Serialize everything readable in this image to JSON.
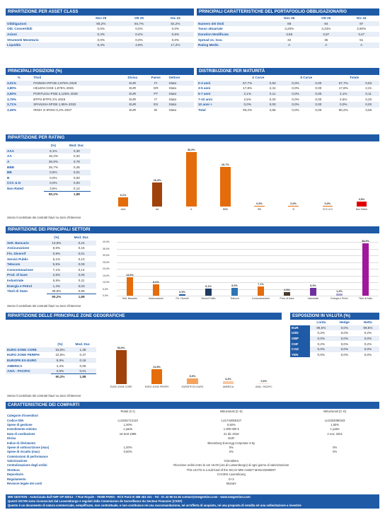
{
  "asset_class": {
    "title": "RIPARTIZIONE PER ASSET CLASS",
    "cols": [
      "Nov 25",
      "Ott 25",
      "Dic 24"
    ],
    "rows": [
      [
        "Obbligazioni",
        "90,2%",
        "94,7%",
        "82,2%"
      ],
      [
        "Obl. Convertibili",
        "0,0%",
        "0,0%",
        "0,0%"
      ],
      [
        "Azioni",
        "0,4%",
        "0,4%",
        "0,6%"
      ],
      [
        "Strumenti Monetario",
        "0,0%",
        "0,0%",
        "0,0%"
      ],
      [
        "Liquidità",
        "9,4%",
        "4,9%",
        "17,2%"
      ]
    ]
  },
  "bond_chars": {
    "title": "PRINCIPALI CARATTERISTICHE DEL PORTAFOGLIO OBBLIGAZIONARIO",
    "cols": [
      "Nov 25",
      "Ott 25",
      "Dic 24"
    ],
    "rows": [
      [
        "Numero dei titoli",
        "88",
        "94",
        "97"
      ],
      [
        "Tasso attuariale",
        "3,20%",
        "3,23%",
        "3,60%"
      ],
      [
        "Duration Modificata",
        "3,55",
        "3,67",
        "3,47"
      ],
      [
        "Spread vs. Gov.",
        "32",
        "35",
        "51"
      ],
      [
        "Rating Medio",
        "A",
        "A",
        "A"
      ]
    ]
  },
  "positions": {
    "title": "PRINCIPALI POSIZIONI (%)",
    "cols": [
      "%",
      "Titoli",
      "Divisa",
      "Paese",
      "Settore"
    ],
    "rows": [
      [
        "3,01%",
        "FINNISH-RFGB 2,875% 2029",
        "EUR",
        "FI",
        "Stato"
      ],
      [
        "3,80%",
        "HELENI-GGB 1,875% 2026",
        "EUR",
        "GR",
        "Stato"
      ],
      [
        "3,60%",
        "PORTUGU-PGB 2,125% 2028",
        "EUR",
        "PT",
        "Stato"
      ],
      [
        "3,79%",
        "BTPS-BTPS 2% 2028",
        "EUR",
        "IT",
        "Stato"
      ],
      [
        "3,71%",
        "SPANISH-SPGB 1,95% 2030",
        "EUR",
        "ES",
        "Stato"
      ],
      [
        "3,49%",
        "IRISH G-IRISH 0,2% 2027",
        "EUR",
        "IE",
        "Stato"
      ]
    ]
  },
  "maturity": {
    "title": "DISTRIBUZIONE PER MATURITÀ",
    "groups": [
      "€ Curve",
      "$ Curve",
      "Totale"
    ],
    "rows": [
      [
        "0-3 anni",
        "67,7%",
        "0,93",
        "0,0%",
        "0,00",
        "67,7%",
        "0,93"
      ],
      [
        "3-5 anni",
        "17,8%",
        "2,31",
        "0,0%",
        "0,00",
        "17,8%",
        "2,31"
      ],
      [
        "5-7 anni",
        "2,1%",
        "0,11",
        "0,0%",
        "0,00",
        "2,1%",
        "0,11"
      ],
      [
        "7-10 anni",
        "2,5%",
        "0,20",
        "0,0%",
        "0,00",
        "2,5%",
        "0,20"
      ],
      [
        "10 anni +",
        "0,0%",
        "0,00",
        "0,0%",
        "0,00",
        "0,0%",
        "0,00"
      ],
      [
        "Total",
        "90,2%",
        "3,55",
        "0,0%",
        "0,00",
        "90,2%",
        "3,55"
      ]
    ]
  },
  "rating": {
    "title": "RIPARTIZIONE PER RATING",
    "cols": [
      "(%)",
      "Mod. Dur."
    ],
    "rows": [
      [
        "AAA",
        "6,1%",
        "0,30"
      ],
      [
        "AA",
        "16,4%",
        "0,32"
      ],
      [
        "A",
        "36,9%",
        "0,78"
      ],
      [
        "BBB",
        "26,7%",
        "0,45"
      ],
      [
        "BB",
        "0,5%",
        "0,01"
      ],
      [
        "B",
        "0,0%",
        "0,00"
      ],
      [
        "CCC & D",
        "0,0%",
        "0,00"
      ],
      [
        "Non Rated",
        "3,5%",
        "0,12"
      ]
    ],
    "total": [
      "90,2%",
      "1,88"
    ],
    "chart_data": {
      "type": "bar",
      "categories": [
        "AAA",
        "AA",
        "A",
        "BBB",
        "BB",
        "B",
        "CCC & D",
        "Non Rated"
      ],
      "values": [
        6.1,
        16.4,
        36.9,
        26.7,
        0.5,
        0.0,
        0.0,
        3.5
      ],
      "labels": [
        "6,1%",
        "16,4%",
        "36,9%",
        "26,7%",
        "0,5%",
        "0,0%",
        "0,0%",
        "3,5%"
      ],
      "colors": [
        "#e46c0a",
        "#a0420c",
        "#e46c0a",
        "#e46c0a",
        "#e46c0a",
        "#e46c0a",
        "#e46c0a",
        "#e00000"
      ],
      "ylim": [
        0,
        40
      ]
    },
    "note": "Senza il contributo dei contratti futuri su tassi d'interesse"
  },
  "sectors": {
    "title": "RIPARTIZIONE DEI PRINCIPALI SETTORI",
    "cols": [
      "(%)",
      "Mod. Dur."
    ],
    "rows": [
      [
        "Sett. Bancario",
        "13,9%",
        "0,24"
      ],
      [
        "Assicurazione",
        "8,6%",
        "0,16"
      ],
      [
        "Fin. Diversif",
        "0,9%",
        "0,01"
      ],
      [
        "Servizi Public",
        "5,1%",
        "0,10"
      ],
      [
        "Telecom",
        "5,9%",
        "0,09"
      ],
      [
        "Consommazione",
        "7,1%",
        "0,14"
      ],
      [
        "Prod. di base",
        "2,5%",
        "0,05"
      ],
      [
        "Industriale",
        "5,9%",
        "0,11"
      ],
      [
        "Energia e Petrol",
        "1,4%",
        "0,03"
      ],
      [
        "Titoli di Stato",
        "38,9%",
        "0,95"
      ]
    ],
    "total": [
      "90,2%",
      "1,88"
    ],
    "chart_data": {
      "type": "bar",
      "categories": [
        "Sett. Bancario",
        "Assicurazione",
        "Fin. Diversif",
        "Servizi Public",
        "Telecom",
        "Consommazione",
        "Prod. di base",
        "Industriale",
        "Energia e Petrol",
        "Titoli di Stato"
      ],
      "values": [
        13.9,
        8.6,
        0.9,
        5.1,
        5.9,
        7.1,
        2.5,
        5.9,
        1.4,
        38.9
      ],
      "labels": [
        "13,9%",
        "8,6%",
        "0,9%",
        "5,1%",
        "5,9%",
        "7,1%",
        "2,5%",
        "5,9%",
        "1,4%",
        "38,9%"
      ],
      "colors": [
        "#e46c0a",
        "#e46c0a",
        "#1f5aa6",
        "#1f3a5f",
        "#2e75b6",
        "#e46c0a",
        "#4a3a2a",
        "#7030a0",
        "#b4a7d6",
        "#a0189c"
      ],
      "yticks": [
        "0,0%",
        "5,0%",
        "10,0%",
        "15,0%",
        "20,0%",
        "25,0%",
        "30,0%",
        "35,0%",
        "40,0%"
      ],
      "ylim": [
        0,
        40
      ]
    },
    "note": "Senza il contributo dei contratti futuri su tassi d'interesse"
  },
  "geo": {
    "title": "RIPARTIZIONE DELLE PRINCIPALE ZONE GEOGRAFICHE",
    "cols": [
      "(%)",
      "Mod. Dur."
    ],
    "rows": [
      [
        "EURO ZONE CORE",
        "53,5%",
        "1,39"
      ],
      [
        "EURO ZONE PERIPH",
        "22,8%",
        "0,47"
      ],
      [
        "EUROPE EX-EURO",
        "8,9%",
        "0,18"
      ],
      [
        "AMERICA",
        "4,4%",
        "0,06"
      ],
      [
        "ASIA - PACIFIC",
        "0,6%",
        "0,01"
      ]
    ],
    "total": [
      "90,2%",
      "1,88"
    ],
    "chart_data": {
      "type": "bar",
      "categories": [
        "EURO ZONE CORE",
        "EURO ZONE PERIPH",
        "EUROPE EX-EURO",
        "AMERICA",
        "ASIA - PACIFIC"
      ],
      "values": [
        53.5,
        22.8,
        8.9,
        4.4,
        0.6
      ],
      "labels": [
        "53,5%",
        "22,8%",
        "8,9%",
        "4,4%",
        "0,6%"
      ],
      "colors": [
        "#a0420c",
        "#e46c0a",
        "#f4a460",
        "#f8c8a0",
        "#fbe0cc"
      ],
      "ylim": [
        0,
        60
      ]
    },
    "note": "Senza il contributo dei contratti futuri su tassi d'interesse"
  },
  "fx": {
    "title": "ESPOSIZIONI IN VALUTA (%)",
    "cols": [
      "Lorda",
      "Hedge",
      "Netto"
    ],
    "rows": [
      [
        "EUR",
        "99,5%",
        "0,0%",
        "99,5%"
      ],
      [
        "USD",
        "0,2%",
        "0,0%",
        "0,2%"
      ],
      [
        "GBP",
        "0,0%",
        "0,0%",
        "0,0%"
      ],
      [
        "CHF",
        "0,2%",
        "0,0%",
        "0,2%"
      ],
      [
        "CAD",
        "0,0%",
        "0,0%",
        "0,0%"
      ],
      [
        "YEN",
        "0,0%",
        "0,0%",
        "0,0%"
      ]
    ]
  },
  "comparti": {
    "title": "CARATTERISTICHE DEI COMPARTI",
    "classes": [
      "Retail (C-I)",
      "Istituzionali (C-S)",
      "Istituzionali (C-G)"
    ],
    "rows": [
      [
        "Categorie d'investitori",
        "",
        "",
        ""
      ],
      [
        "Codice ISIN",
        "LU1061712110",
        "LU1744059127",
        "LU2334080343"
      ],
      [
        "Spese di gestione",
        "1,00%",
        "0,50%",
        "1,00%"
      ],
      [
        "Investimento minimo",
        "1 parte",
        "1 000 000 €",
        "1 parte"
      ],
      [
        "Data di costituzione",
        "18 Sett 1995",
        "21 dic 2018",
        "2 nov. 2021"
      ],
      [
        "Divisa",
        "",
        "EUR",
        ""
      ],
      [
        "Indice di riferimento",
        "",
        "Bloomberg EuroAgg Corporate 3-5y",
        ""
      ],
      [
        "Spese di sottoscrizione (max)",
        "1,00%",
        "0%",
        "0%"
      ],
      [
        "Spese di riscatto (max)",
        "0,50%",
        "0%",
        "0%"
      ],
      [
        "Commissioni di performance",
        "",
        "",
        ""
      ],
      [
        "Valorizzazione",
        "",
        "Giornaliera",
        ""
      ],
      [
        "Centralizzazione degli ordini",
        "",
        "Ricezione ordini entro le ore 15.00 (ora di Lussemburgo) di ogni giorno di valorizzazione",
        ""
      ],
      [
        "Struttura",
        "",
        "This UCITS is a sub-fund of the SICAV MW ASSET MANAGEMENT",
        ""
      ],
      [
        "Depositario",
        "",
        "CACEIS Luxembourg",
        ""
      ],
      [
        "Regolamento",
        "",
        "G+2",
        ""
      ],
      [
        "Revisore legale dei conti",
        "",
        "Mazars",
        ""
      ]
    ]
  },
  "footer": {
    "line1": "MW GESTION - Autorizzata dall'AMF GP 92014 - 7 Rue Royale - 75008 PARIS - RCS Paris B 388 453 221 - Tel : 01 42 86 54 45 contact@mwgestion.com - www.mwgestion.com",
    "line2": "Questi OICVM sono riconosciuti dal Lussemburgo e regolati dalla Commission de Surveillance du Secteur Financier (CSSF)",
    "line3": "Questo è un documento di natura commerciale, semplificato, non contrattuale, e non costituisce né una raccomandazione, né un'offerta di acquisto, né una proposta di vendita né una sollecitazione a investire"
  }
}
